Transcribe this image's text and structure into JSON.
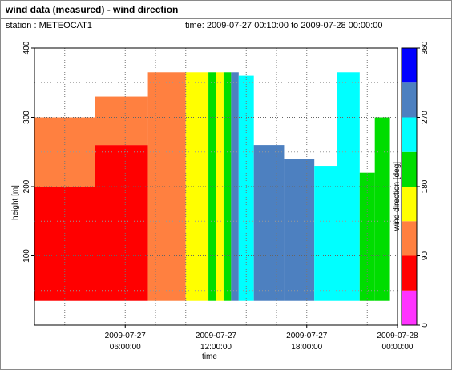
{
  "header": {
    "title": "wind data (measured) - wind direction",
    "station": "station : METEOCAT1",
    "time_range": "time: 2009-07-27 00:10:00 to 2009-07-28 00:00:00"
  },
  "chart_data": {
    "type": "heatmap",
    "xlabel": "time",
    "ylabel": "height [m]",
    "colorbar_label": "wind direction [deg]",
    "x_range_hours": [
      0,
      24
    ],
    "ylim": [
      0,
      400
    ],
    "x_ticks": [
      {
        "hours": 6,
        "line1": "2009-07-27",
        "line2": "06:00:00"
      },
      {
        "hours": 12,
        "line1": "2009-07-27",
        "line2": "12:00:00"
      },
      {
        "hours": 18,
        "line1": "2009-07-27",
        "line2": "18:00:00"
      },
      {
        "hours": 24,
        "line1": "2009-07-28",
        "line2": "00:00:00"
      }
    ],
    "y_ticks": [
      100,
      200,
      300,
      400
    ],
    "colorbar": {
      "ticks": [
        0,
        90,
        180,
        270,
        360
      ],
      "bins": [
        {
          "from": 0,
          "to": 45,
          "color": "#ff33ff"
        },
        {
          "from": 45,
          "to": 90,
          "color": "#ff0000"
        },
        {
          "from": 90,
          "to": 135,
          "color": "#ff8040"
        },
        {
          "from": 135,
          "to": 180,
          "color": "#ffff00"
        },
        {
          "from": 180,
          "to": 225,
          "color": "#00dd00"
        },
        {
          "from": 225,
          "to": 270,
          "color": "#00ffff"
        },
        {
          "from": 270,
          "to": 315,
          "color": "#4d80c0"
        },
        {
          "from": 315,
          "to": 360,
          "color": "#0000ff"
        }
      ]
    },
    "grid": true,
    "min_height_m": 35,
    "profiles": [
      {
        "start_h": 0.0,
        "end_h": 4.0,
        "top_m": 300,
        "lower_dir": 60,
        "upper_dir": 110,
        "transition_m": 200
      },
      {
        "start_h": 4.0,
        "end_h": 7.5,
        "top_m": 330,
        "lower_dir": 60,
        "upper_dir": 110,
        "transition_m": 260
      },
      {
        "start_h": 7.5,
        "end_h": 10.0,
        "top_m": 365,
        "lower_dir": 110,
        "upper_dir": 110,
        "transition_m": 365
      },
      {
        "start_h": 10.0,
        "end_h": 11.5,
        "top_m": 365,
        "lower_dir": 160,
        "upper_dir": 160,
        "transition_m": 365
      },
      {
        "start_h": 11.5,
        "end_h": 12.0,
        "top_m": 365,
        "lower_dir": 200,
        "upper_dir": 200,
        "transition_m": 365
      },
      {
        "start_h": 12.0,
        "end_h": 12.5,
        "top_m": 365,
        "lower_dir": 160,
        "upper_dir": 160,
        "transition_m": 365
      },
      {
        "start_h": 12.5,
        "end_h": 13.0,
        "top_m": 365,
        "lower_dir": 200,
        "upper_dir": 200,
        "transition_m": 365
      },
      {
        "start_h": 13.0,
        "end_h": 13.5,
        "top_m": 365,
        "lower_dir": 300,
        "upper_dir": 300,
        "transition_m": 365
      },
      {
        "start_h": 13.5,
        "end_h": 14.5,
        "top_m": 360,
        "lower_dir": 250,
        "upper_dir": 250,
        "transition_m": 360
      },
      {
        "start_h": 14.5,
        "end_h": 16.5,
        "top_m": 260,
        "lower_dir": 290,
        "upper_dir": 290,
        "transition_m": 260
      },
      {
        "start_h": 16.5,
        "end_h": 18.5,
        "top_m": 240,
        "lower_dir": 290,
        "upper_dir": 290,
        "transition_m": 240
      },
      {
        "start_h": 18.5,
        "end_h": 20.0,
        "top_m": 230,
        "lower_dir": 250,
        "upper_dir": 250,
        "transition_m": 230
      },
      {
        "start_h": 20.0,
        "end_h": 21.5,
        "top_m": 365,
        "lower_dir": 250,
        "upper_dir": 250,
        "transition_m": 365
      },
      {
        "start_h": 21.5,
        "end_h": 22.5,
        "top_m": 220,
        "lower_dir": 200,
        "upper_dir": 200,
        "transition_m": 220
      },
      {
        "start_h": 22.5,
        "end_h": 23.5,
        "top_m": 300,
        "lower_dir": 200,
        "upper_dir": 200,
        "transition_m": 300
      }
    ]
  }
}
